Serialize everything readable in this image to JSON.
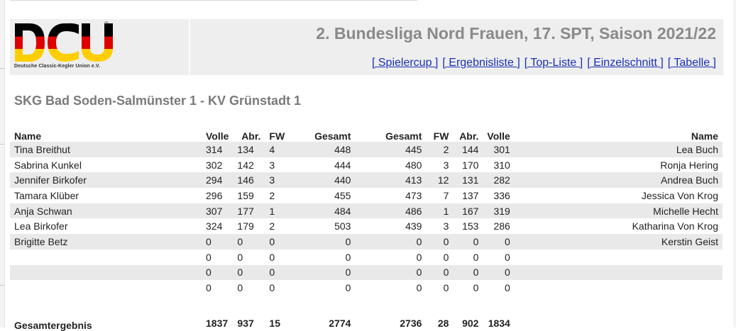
{
  "header": {
    "logo_text": "DCU",
    "logo_sub": "Deutsche Classic-Kegler Union e.V.",
    "logo_reg": "®",
    "title": "2. Bundesliga Nord Frauen, 17. SPT, Saison 2021/22",
    "nav": [
      {
        "label": "[ Spielercup ]"
      },
      {
        "label": "[ Ergebnisliste ]"
      },
      {
        "label": "[ Top-Liste ]"
      },
      {
        "label": "[ Einzelschnitt ]"
      },
      {
        "label": "[ Tabelle ]"
      }
    ]
  },
  "match": {
    "title": "SKG Bad Soden-Salmünster 1 - KV Grünstadt 1"
  },
  "table": {
    "columns": [
      "Name",
      "Volle",
      "Abr.",
      "FW",
      "Gesamt",
      "Gesamt",
      "FW",
      "Abr.",
      "Volle",
      "Name"
    ],
    "rows": [
      [
        "Tina Breithut",
        "314",
        "134",
        "4",
        "448",
        "445",
        "2",
        "144",
        "301",
        "Lea Buch"
      ],
      [
        "Sabrina Kunkel",
        "302",
        "142",
        "3",
        "444",
        "480",
        "3",
        "170",
        "310",
        "Ronja Hering"
      ],
      [
        "Jennifer Birkofer",
        "294",
        "146",
        "3",
        "440",
        "413",
        "12",
        "131",
        "282",
        "Andrea Buch"
      ],
      [
        "Tamara Klüber",
        "296",
        "159",
        "2",
        "455",
        "473",
        "7",
        "137",
        "336",
        "Jessica Von Krog"
      ],
      [
        "Anja Schwan",
        "307",
        "177",
        "1",
        "484",
        "486",
        "1",
        "167",
        "319",
        "Michelle Hecht"
      ],
      [
        "Lea Birkofer",
        "324",
        "179",
        "2",
        "503",
        "439",
        "3",
        "153",
        "286",
        "Katharina Von Krog"
      ],
      [
        "Brigitte Betz",
        "0",
        "0",
        "0",
        "0",
        "0",
        "0",
        "0",
        "0",
        "Kerstin Geist"
      ],
      [
        "",
        "0",
        "0",
        "0",
        "0",
        "0",
        "0",
        "0",
        "0",
        ""
      ],
      [
        "",
        "0",
        "0",
        "0",
        "0",
        "0",
        "0",
        "0",
        "0",
        ""
      ],
      [
        "",
        "0",
        "0",
        "0",
        "0",
        "0",
        "0",
        "0",
        "0",
        ""
      ]
    ],
    "total": {
      "label": "Gesamtergebnis",
      "values": [
        "1837",
        "937",
        "15",
        "2774",
        "2736",
        "28",
        "902",
        "1834"
      ]
    }
  },
  "colors": {
    "title_gray": "#8a8a8a",
    "link_blue": "#1b2fb8",
    "row_stripe": "#e9e9e9",
    "header_bg": "#eeeeee",
    "flag_black": "#000000",
    "flag_red": "#dd0000",
    "flag_gold": "#ffce00"
  }
}
